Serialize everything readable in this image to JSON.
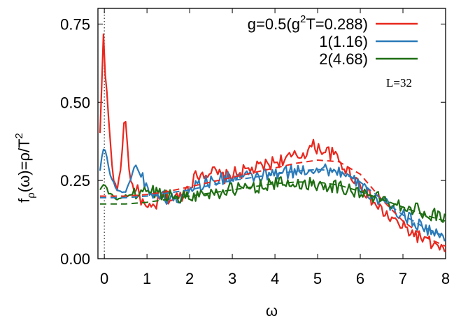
{
  "chart_data": {
    "type": "line",
    "title": "",
    "xlabel": "ω",
    "ylabel": "f_ρ(ω)=ρ/T^2",
    "xlim": [
      -0.15,
      8
    ],
    "ylim": [
      0,
      0.8
    ],
    "x_ticks": [
      "0",
      "1",
      "2",
      "3",
      "4",
      "5",
      "6",
      "7",
      "8"
    ],
    "y_ticks": [
      "0.00",
      "0.25",
      "0.50",
      "0.75"
    ],
    "reference_line": {
      "x": 0,
      "style": "dotted"
    },
    "annotation": "L=32",
    "legend_position": "top-right",
    "series": [
      {
        "name": "g=0.5(g²T=0.288)",
        "legend_parts": [
          "g=0.5(g",
          "2",
          "T=0.288)"
        ],
        "color": "#e8281e",
        "style": "noisy",
        "points": [
          [
            -0.1,
            0.4
          ],
          [
            -0.05,
            0.6
          ],
          [
            -0.02,
            0.72
          ],
          [
            0.0,
            0.62
          ],
          [
            0.05,
            0.55
          ],
          [
            0.1,
            0.45
          ],
          [
            0.2,
            0.26
          ],
          [
            0.3,
            0.22
          ],
          [
            0.4,
            0.3
          ],
          [
            0.45,
            0.43
          ],
          [
            0.5,
            0.44
          ],
          [
            0.6,
            0.25
          ],
          [
            0.8,
            0.21
          ],
          [
            1.0,
            0.15
          ],
          [
            1.2,
            0.17
          ],
          [
            1.4,
            0.2
          ],
          [
            1.6,
            0.19
          ],
          [
            1.8,
            0.2
          ],
          [
            2.0,
            0.24
          ],
          [
            2.2,
            0.27
          ],
          [
            2.5,
            0.28
          ],
          [
            2.8,
            0.26
          ],
          [
            3.0,
            0.27
          ],
          [
            3.3,
            0.28
          ],
          [
            3.6,
            0.29
          ],
          [
            4.0,
            0.31
          ],
          [
            4.3,
            0.32
          ],
          [
            4.6,
            0.33
          ],
          [
            4.9,
            0.36
          ],
          [
            5.1,
            0.35
          ],
          [
            5.4,
            0.33
          ],
          [
            5.7,
            0.28
          ],
          [
            6.0,
            0.24
          ],
          [
            6.3,
            0.18
          ],
          [
            6.6,
            0.14
          ],
          [
            7.0,
            0.1
          ],
          [
            7.5,
            0.06
          ],
          [
            8.0,
            0.02
          ]
        ]
      },
      {
        "name": "1(1.16)",
        "color": "#2a7ab8",
        "style": "noisy",
        "points": [
          [
            -0.1,
            0.28
          ],
          [
            -0.05,
            0.34
          ],
          [
            0.0,
            0.36
          ],
          [
            0.05,
            0.33
          ],
          [
            0.15,
            0.26
          ],
          [
            0.3,
            0.22
          ],
          [
            0.5,
            0.21
          ],
          [
            0.7,
            0.29
          ],
          [
            0.85,
            0.28
          ],
          [
            1.0,
            0.22
          ],
          [
            1.3,
            0.2
          ],
          [
            1.6,
            0.19
          ],
          [
            1.8,
            0.19
          ],
          [
            2.0,
            0.23
          ],
          [
            2.3,
            0.24
          ],
          [
            2.6,
            0.25
          ],
          [
            3.0,
            0.26
          ],
          [
            3.5,
            0.26
          ],
          [
            4.0,
            0.27
          ],
          [
            4.5,
            0.28
          ],
          [
            5.0,
            0.29
          ],
          [
            5.5,
            0.28
          ],
          [
            6.0,
            0.23
          ],
          [
            6.5,
            0.18
          ],
          [
            7.0,
            0.14
          ],
          [
            7.5,
            0.1
          ],
          [
            8.0,
            0.06
          ]
        ]
      },
      {
        "name": "2(4.68)",
        "color": "#1e6e12",
        "style": "noisy",
        "points": [
          [
            -0.1,
            0.22
          ],
          [
            0.0,
            0.24
          ],
          [
            0.1,
            0.21
          ],
          [
            0.3,
            0.19
          ],
          [
            0.5,
            0.2
          ],
          [
            0.8,
            0.21
          ],
          [
            1.0,
            0.22
          ],
          [
            1.3,
            0.21
          ],
          [
            1.6,
            0.2
          ],
          [
            2.0,
            0.2
          ],
          [
            2.5,
            0.21
          ],
          [
            3.0,
            0.22
          ],
          [
            3.5,
            0.23
          ],
          [
            4.0,
            0.24
          ],
          [
            4.5,
            0.24
          ],
          [
            5.0,
            0.24
          ],
          [
            5.5,
            0.23
          ],
          [
            6.0,
            0.21
          ],
          [
            6.5,
            0.19
          ],
          [
            7.0,
            0.17
          ],
          [
            7.5,
            0.15
          ],
          [
            8.0,
            0.13
          ]
        ]
      },
      {
        "name": "",
        "color": "#e8281e",
        "style": "dashed",
        "points": [
          [
            -0.1,
            0.2
          ],
          [
            0.5,
            0.2
          ],
          [
            1.0,
            0.205
          ],
          [
            1.5,
            0.215
          ],
          [
            2.0,
            0.23
          ],
          [
            2.5,
            0.245
          ],
          [
            3.0,
            0.26
          ],
          [
            3.5,
            0.275
          ],
          [
            4.0,
            0.29
          ],
          [
            4.5,
            0.305
          ],
          [
            5.0,
            0.315
          ],
          [
            5.5,
            0.31
          ],
          [
            6.0,
            0.27
          ],
          [
            6.5,
            0.19
          ],
          [
            7.0,
            0.12
          ],
          [
            7.5,
            0.07
          ],
          [
            8.0,
            0.04
          ]
        ]
      },
      {
        "name": "",
        "color": "#2a7ab8",
        "style": "dashed",
        "points": [
          [
            -0.1,
            0.195
          ],
          [
            0.5,
            0.195
          ],
          [
            1.0,
            0.2
          ],
          [
            1.5,
            0.21
          ],
          [
            2.0,
            0.22
          ],
          [
            2.5,
            0.235
          ],
          [
            3.0,
            0.25
          ],
          [
            3.5,
            0.26
          ],
          [
            4.0,
            0.27
          ],
          [
            4.5,
            0.28
          ],
          [
            5.0,
            0.285
          ],
          [
            5.5,
            0.28
          ],
          [
            6.0,
            0.245
          ],
          [
            6.5,
            0.19
          ],
          [
            7.0,
            0.14
          ],
          [
            7.5,
            0.1
          ],
          [
            8.0,
            0.07
          ]
        ]
      },
      {
        "name": "",
        "color": "#1e6e12",
        "style": "dashed",
        "points": [
          [
            -0.1,
            0.175
          ],
          [
            0.5,
            0.175
          ],
          [
            1.0,
            0.18
          ],
          [
            1.5,
            0.19
          ],
          [
            2.0,
            0.2
          ],
          [
            2.5,
            0.21
          ],
          [
            3.0,
            0.22
          ],
          [
            3.5,
            0.23
          ],
          [
            4.0,
            0.24
          ],
          [
            4.5,
            0.245
          ],
          [
            5.0,
            0.245
          ],
          [
            5.5,
            0.235
          ],
          [
            6.0,
            0.215
          ],
          [
            6.5,
            0.19
          ],
          [
            7.0,
            0.165
          ],
          [
            7.5,
            0.14
          ],
          [
            8.0,
            0.12
          ]
        ]
      }
    ]
  }
}
